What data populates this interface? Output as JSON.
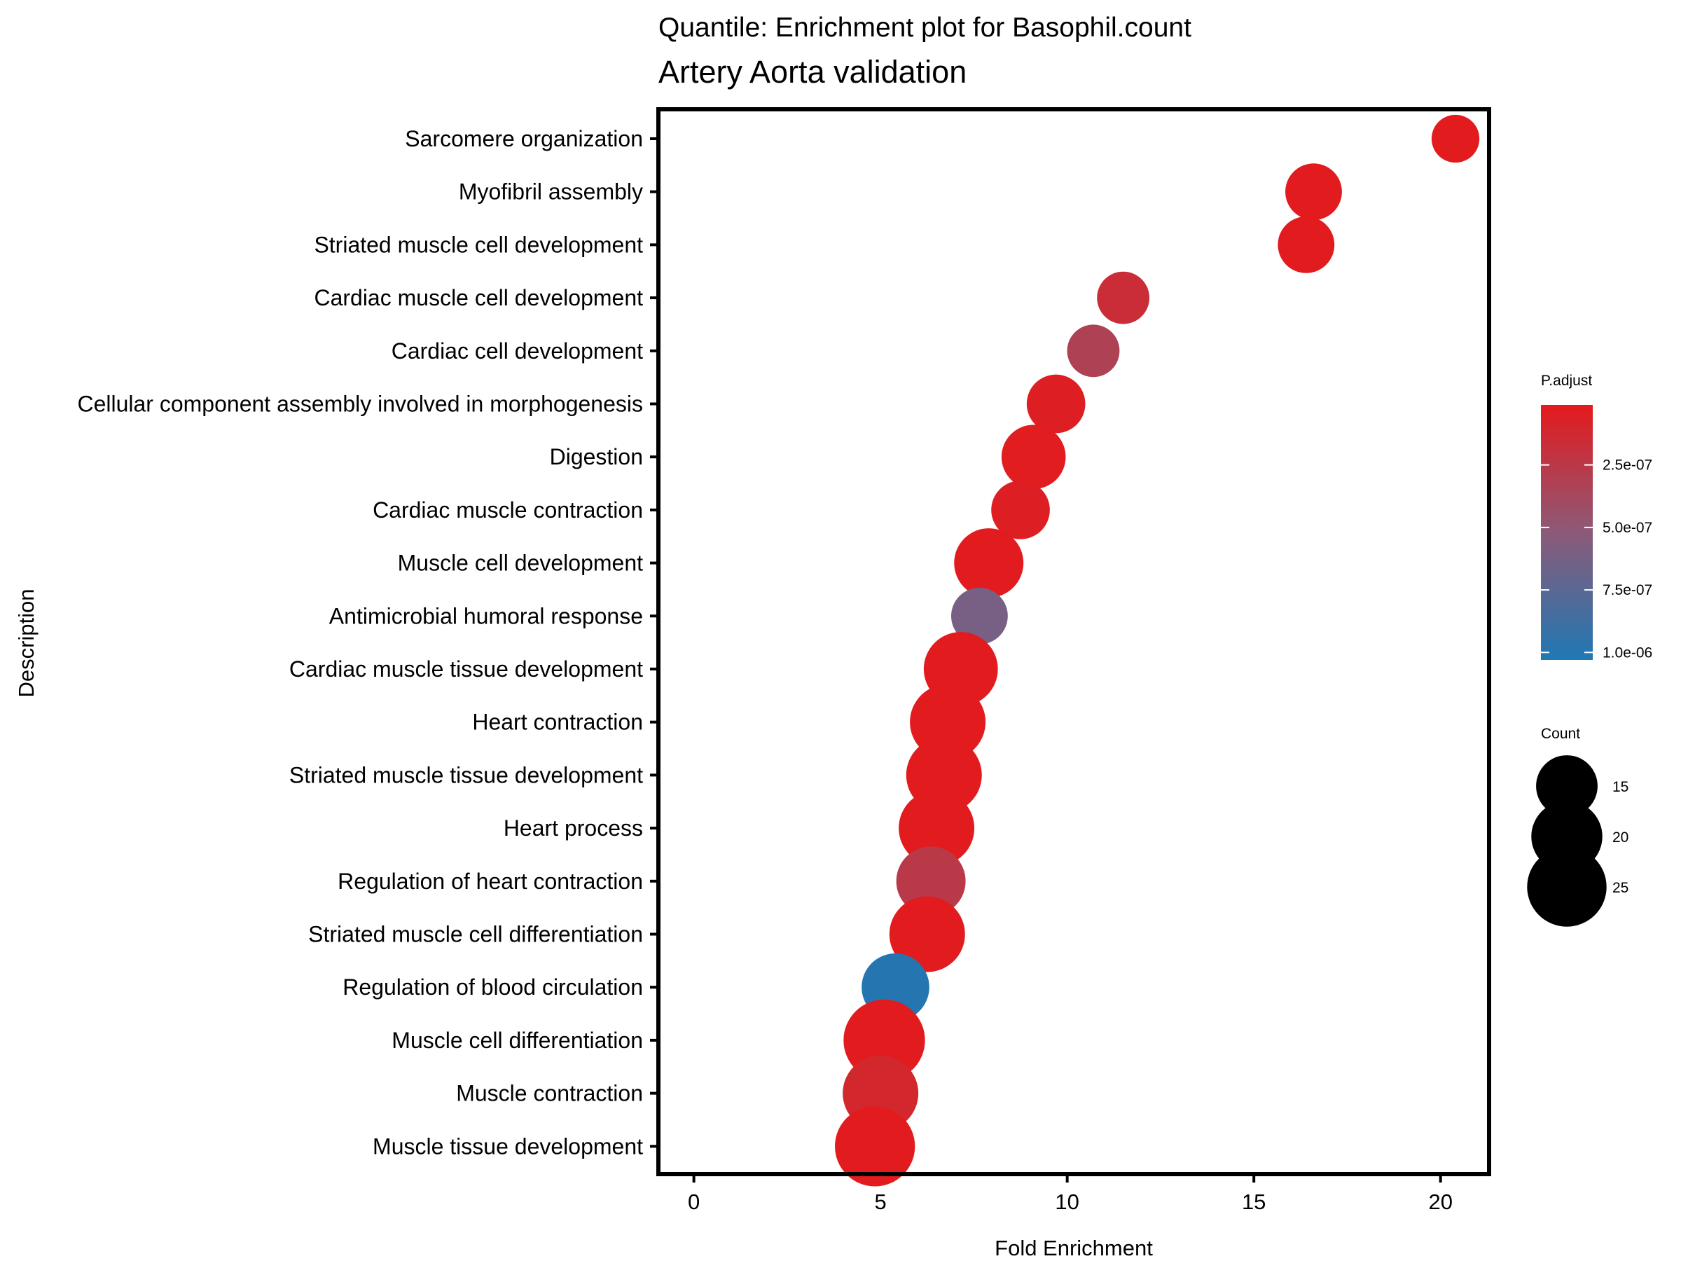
{
  "chart_data": {
    "type": "scatter",
    "title": "Quantile: Enrichment plot for Basophil.count",
    "subtitle": "Artery Aorta validation",
    "xlabel": "Fold Enrichment",
    "ylabel": "Description",
    "xlim": [
      -0.95,
      21.3
    ],
    "xticks": [
      0,
      5,
      10,
      15,
      20
    ],
    "xtick_labels": [
      "0",
      "5",
      "10",
      "15",
      "20"
    ],
    "grid": false,
    "categories": [
      "Sarcomere organization",
      "Myofibril assembly",
      "Striated muscle cell development",
      "Cardiac muscle cell development",
      "Cardiac cell development",
      "Cellular component assembly involved in morphogenesis",
      "Digestion",
      "Cardiac muscle contraction",
      "Muscle cell development",
      "Antimicrobial humoral response",
      "Cardiac muscle tissue development",
      "Heart contraction",
      "Striated muscle tissue development",
      "Heart process",
      "Regulation of heart contraction",
      "Striated muscle cell differentiation",
      "Regulation of blood circulation",
      "Muscle cell differentiation",
      "Muscle contraction",
      "Muscle tissue development"
    ],
    "points": [
      {
        "description": "Sarcomere organization",
        "fold_enrichment": 20.4,
        "count": 10,
        "p_adjust": 2e-08
      },
      {
        "description": "Myofibril assembly",
        "fold_enrichment": 16.6,
        "count": 14,
        "p_adjust": 2e-08
      },
      {
        "description": "Striated muscle cell development",
        "fold_enrichment": 16.4,
        "count": 14,
        "p_adjust": 2e-08
      },
      {
        "description": "Cardiac muscle cell development",
        "fold_enrichment": 11.5,
        "count": 12,
        "p_adjust": 1.6e-07
      },
      {
        "description": "Cardiac cell development",
        "fold_enrichment": 10.7,
        "count": 12,
        "p_adjust": 3.2e-07
      },
      {
        "description": "Cellular component assembly involved in morphogenesis",
        "fold_enrichment": 9.7,
        "count": 15,
        "p_adjust": 5e-08
      },
      {
        "description": "Digestion",
        "fold_enrichment": 9.1,
        "count": 18,
        "p_adjust": 3e-08
      },
      {
        "description": "Cardiac muscle contraction",
        "fold_enrichment": 8.75,
        "count": 15,
        "p_adjust": 5e-08
      },
      {
        "description": "Muscle cell development",
        "fold_enrichment": 7.9,
        "count": 21,
        "p_adjust": 2e-08
      },
      {
        "description": "Antimicrobial humoral response",
        "fold_enrichment": 7.65,
        "count": 14,
        "p_adjust": 6.2e-07
      },
      {
        "description": "Cardiac muscle tissue development",
        "fold_enrichment": 7.15,
        "count": 24,
        "p_adjust": 2e-08
      },
      {
        "description": "Heart contraction",
        "fold_enrichment": 6.8,
        "count": 25,
        "p_adjust": 2e-08
      },
      {
        "description": "Striated muscle tissue development",
        "fold_enrichment": 6.7,
        "count": 25,
        "p_adjust": 2e-08
      },
      {
        "description": "Heart process",
        "fold_enrichment": 6.5,
        "count": 25,
        "p_adjust": 2e-08
      },
      {
        "description": "Regulation of heart contraction",
        "fold_enrichment": 6.35,
        "count": 21,
        "p_adjust": 2.6e-07
      },
      {
        "description": "Striated muscle cell differentiation",
        "fold_enrichment": 6.25,
        "count": 25,
        "p_adjust": 2e-08
      },
      {
        "description": "Regulation of blood circulation",
        "fold_enrichment": 5.4,
        "count": 20,
        "p_adjust": 1e-06
      },
      {
        "description": "Muscle cell differentiation",
        "fold_enrichment": 5.1,
        "count": 29,
        "p_adjust": 2e-08
      },
      {
        "description": "Muscle contraction",
        "fold_enrichment": 5.0,
        "count": 25,
        "p_adjust": 1.1e-07
      },
      {
        "description": "Muscle tissue development",
        "fold_enrichment": 4.85,
        "count": 28,
        "p_adjust": 2e-08
      }
    ],
    "color_legend": {
      "title": "P.adjust",
      "min": 1e-08,
      "max": 1.03e-06,
      "ticks": [
        2.5e-07,
        5e-07,
        7.5e-07,
        1e-06
      ],
      "tick_labels": [
        "2.5e-07",
        "5.0e-07",
        "7.5e-07",
        "1.0e-06"
      ],
      "low_color": "#e41a1c",
      "mid_color": "#8c5a78",
      "high_color": "#1f78b4"
    },
    "size_legend": {
      "title": "Count",
      "values": [
        15,
        20,
        25
      ],
      "labels": [
        "15",
        "20",
        "25"
      ]
    }
  }
}
